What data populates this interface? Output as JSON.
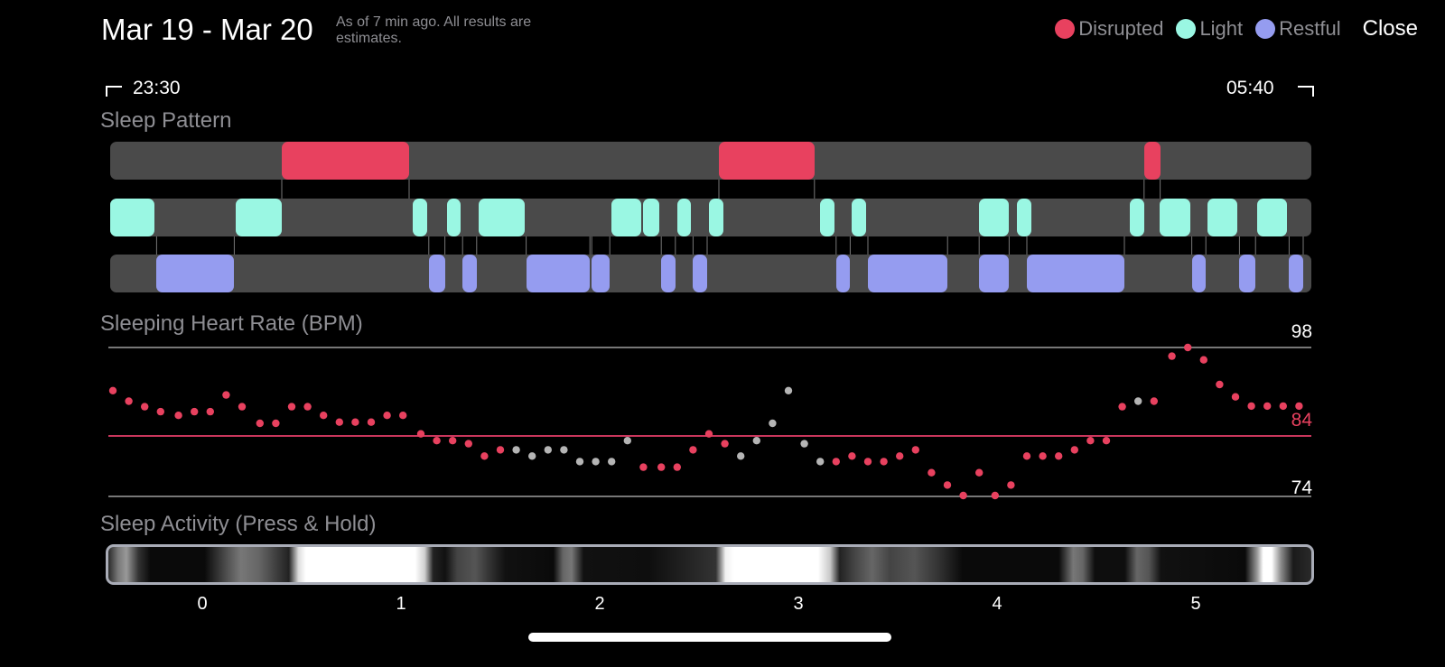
{
  "header": {
    "date_range": "Mar 19 - Mar 20",
    "estimate_note": "As of 7 min ago. All results are estimates.",
    "close_label": "Close"
  },
  "legend": [
    {
      "label": "Disrupted",
      "color": "#e8415f"
    },
    {
      "label": "Light",
      "color": "#9af7e3"
    },
    {
      "label": "Restful",
      "color": "#959cf0"
    }
  ],
  "time_range": {
    "start": "23:30",
    "end": "05:40"
  },
  "sleep_pattern": {
    "title": "Sleep Pattern",
    "colors": {
      "disrupted": "#e8415f",
      "light": "#9af7e3",
      "restful": "#959cf0",
      "track": "#4a4a4a"
    },
    "x_range_hours": [
      -0.5,
      5.5
    ],
    "disrupted": [
      [
        0.4,
        1.05
      ],
      [
        2.6,
        3.09
      ],
      [
        4.74,
        4.83
      ]
    ],
    "light": [
      [
        -0.47,
        -0.23
      ],
      [
        0.17,
        0.41
      ],
      [
        1.06,
        1.14
      ],
      [
        1.23,
        1.31
      ],
      [
        1.39,
        1.63
      ],
      [
        2.06,
        2.22
      ],
      [
        2.22,
        2.31
      ],
      [
        2.39,
        2.47
      ],
      [
        2.55,
        2.63
      ],
      [
        3.11,
        3.19
      ],
      [
        3.27,
        3.35
      ],
      [
        3.91,
        4.07
      ],
      [
        4.1,
        4.18
      ],
      [
        4.67,
        4.75
      ],
      [
        4.82,
        4.98
      ],
      [
        5.06,
        5.22
      ],
      [
        5.31,
        5.47
      ]
    ],
    "restful": [
      [
        -0.23,
        0.17
      ],
      [
        1.14,
        1.23
      ],
      [
        1.31,
        1.39
      ],
      [
        1.63,
        1.96
      ],
      [
        1.96,
        2.06
      ],
      [
        2.31,
        2.39
      ],
      [
        2.47,
        2.55
      ],
      [
        3.19,
        3.27
      ],
      [
        3.35,
        3.76
      ],
      [
        3.91,
        4.07
      ],
      [
        4.15,
        4.65
      ],
      [
        4.98,
        5.06
      ],
      [
        5.22,
        5.31
      ],
      [
        5.47,
        5.55
      ]
    ]
  },
  "heart_rate": {
    "title": "Sleeping Heart Rate (BPM)",
    "max_label": "98",
    "avg_label": "84",
    "min_label": "74",
    "max": 98,
    "avg": 84,
    "min": 74,
    "colors": {
      "point": "#e8415f",
      "gray_point": "#b5b5b5",
      "avg_line": "#c9365c",
      "avg_text": "#e8415f"
    }
  },
  "chart_data": {
    "type": "scatter",
    "title": "Sleeping Heart Rate (BPM)",
    "xlim": [
      -0.5,
      5.5
    ],
    "ylim": [
      74,
      98
    ],
    "reference_lines": [
      98,
      84,
      74
    ],
    "series": [
      {
        "x": [
          -0.45,
          -0.37,
          -0.29,
          -0.21,
          -0.12,
          -0.04,
          0.04,
          0.12,
          0.2,
          0.29,
          0.37,
          0.45,
          0.53,
          0.61,
          0.69,
          0.77,
          0.85,
          0.93,
          1.01,
          1.1,
          1.18,
          1.26,
          1.34,
          1.42,
          1.5,
          1.58,
          1.66,
          1.74,
          1.82,
          1.9,
          1.98,
          2.06,
          2.14,
          2.22,
          2.31,
          2.39,
          2.47,
          2.55,
          2.63,
          2.71,
          2.79,
          2.87,
          2.95,
          3.03,
          3.11,
          3.19,
          3.27,
          3.35,
          3.43,
          3.51,
          3.59,
          3.67,
          3.75,
          3.83,
          3.91,
          3.99,
          4.07,
          4.15,
          4.23,
          4.31,
          4.39,
          4.47,
          4.55,
          4.63,
          4.71,
          4.79,
          4.88,
          4.96,
          5.04,
          5.12,
          5.2,
          5.28,
          5.36,
          5.44,
          5.52
        ],
        "y": [
          91,
          89.3,
          88.4,
          87.6,
          87,
          87.6,
          87.6,
          90.3,
          88.4,
          85.7,
          85.7,
          88.4,
          88.4,
          87,
          85.9,
          85.9,
          85.9,
          87,
          87,
          84,
          82.9,
          82.9,
          82.4,
          80.4,
          81.4,
          81.4,
          80.4,
          81.4,
          81.4,
          79.5,
          79.5,
          79.5,
          82.9,
          78.6,
          78.6,
          78.6,
          81.4,
          84,
          82.4,
          80.4,
          82.9,
          85.7,
          91,
          82.4,
          79.5,
          79.5,
          80.4,
          79.5,
          79.5,
          80.4,
          81.4,
          77.7,
          75.7,
          74,
          77.7,
          74,
          75.7,
          80.4,
          80.4,
          80.4,
          81.4,
          82.9,
          82.9,
          88.4,
          89.3,
          89.3,
          96.6,
          98,
          96,
          92,
          90,
          88.5,
          88.5,
          88.5,
          88.5
        ],
        "gray_indices": [
          25,
          26,
          27,
          28,
          29,
          30,
          31,
          32,
          39,
          40,
          41,
          42,
          43,
          44,
          64
        ]
      }
    ]
  },
  "activity": {
    "title": "Sleep Activity (Press & Hold)",
    "x_ticks": [
      "0",
      "1",
      "2",
      "3",
      "4",
      "5"
    ],
    "gradient": [
      [
        0,
        "#2a2a2a"
      ],
      [
        0.8,
        "#777"
      ],
      [
        1.5,
        "#999"
      ],
      [
        2.5,
        "#333"
      ],
      [
        3.5,
        "#0a0a0a"
      ],
      [
        8,
        "#0a0a0a"
      ],
      [
        10,
        "#555"
      ],
      [
        11,
        "#777"
      ],
      [
        12.5,
        "#666"
      ],
      [
        15,
        "#222"
      ],
      [
        15.8,
        "#dcdcdc"
      ],
      [
        16.4,
        "#fff"
      ],
      [
        25.5,
        "#fff"
      ],
      [
        26.3,
        "#cfcfcf"
      ],
      [
        27,
        "#222"
      ],
      [
        28,
        "#111"
      ],
      [
        29,
        "#444"
      ],
      [
        30.5,
        "#555"
      ],
      [
        32,
        "#2a2a2a"
      ],
      [
        33,
        "#111"
      ],
      [
        37,
        "#0a0a0a"
      ],
      [
        37.8,
        "#666"
      ],
      [
        38.5,
        "#777"
      ],
      [
        39.5,
        "#111"
      ],
      [
        45,
        "#0e0e0e"
      ],
      [
        50.5,
        "#333"
      ],
      [
        51.3,
        "#f0f0f0"
      ],
      [
        52,
        "#fff"
      ],
      [
        59,
        "#fff"
      ],
      [
        60,
        "#c8c8c8"
      ],
      [
        60.8,
        "#222"
      ],
      [
        62,
        "#444"
      ],
      [
        63.5,
        "#666"
      ],
      [
        65,
        "#444"
      ],
      [
        67,
        "#555"
      ],
      [
        69,
        "#333"
      ],
      [
        71,
        "#0a0a0a"
      ],
      [
        79,
        "#0a0a0a"
      ],
      [
        80.2,
        "#777"
      ],
      [
        81,
        "#666"
      ],
      [
        82,
        "#0e0e0e"
      ],
      [
        84.5,
        "#0e0e0e"
      ],
      [
        85.5,
        "#666"
      ],
      [
        86.5,
        "#555"
      ],
      [
        87.5,
        "#111"
      ],
      [
        94.5,
        "#0a0a0a"
      ],
      [
        95.5,
        "#999"
      ],
      [
        96,
        "#fff"
      ],
      [
        96.7,
        "#fff"
      ],
      [
        97.5,
        "#888"
      ],
      [
        98.5,
        "#1a1a1a"
      ],
      [
        100,
        "#2a2a2a"
      ]
    ]
  }
}
